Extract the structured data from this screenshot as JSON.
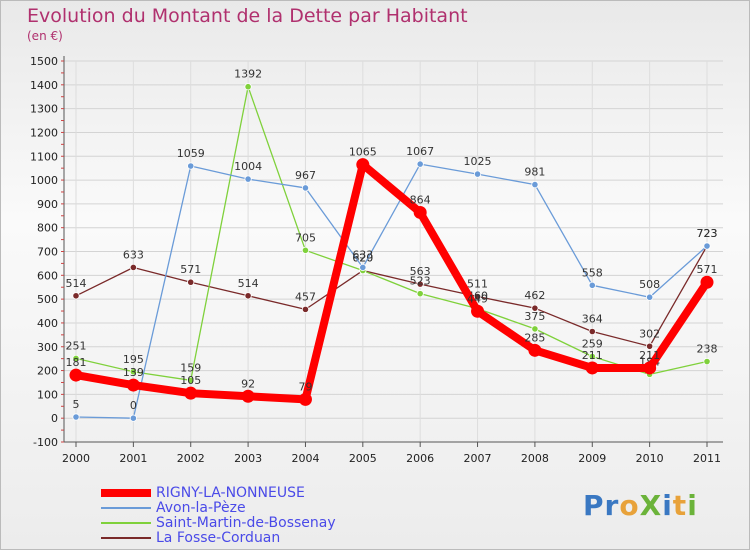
{
  "chart_data": {
    "type": "line",
    "title": "Evolution du Montant de la Dette par Habitant",
    "unit_label": "(en €)",
    "xlabel": "",
    "ylabel": "",
    "ylim": [
      -100,
      1500
    ],
    "yticks": [
      -100,
      0,
      100,
      200,
      300,
      400,
      500,
      600,
      700,
      800,
      900,
      1000,
      1100,
      1200,
      1300,
      1400,
      1500
    ],
    "categories": [
      "2000",
      "2001",
      "2002",
      "2003",
      "2004",
      "2005",
      "2006",
      "2007",
      "2008",
      "2009",
      "2010",
      "2011"
    ],
    "grid": true,
    "legend_position": "bottom-left",
    "series": [
      {
        "name": "La Fosse-Corduan",
        "color": "#7a2a2a",
        "values": [
          514,
          633,
          571,
          514,
          457,
          620,
          563,
          511,
          462,
          364,
          302,
          723
        ]
      },
      {
        "name": "Saint-Martin-de-Bossenay",
        "color": "#7fd13b",
        "values": [
          251,
          195,
          159,
          1392,
          705,
          620,
          523,
          460,
          375,
          259,
          184,
          238
        ]
      },
      {
        "name": "Avon-la-Pèze",
        "color": "#6a9bd8",
        "values": [
          5,
          0,
          1059,
          1004,
          967,
          633,
          1067,
          1025,
          981,
          558,
          508,
          723
        ]
      },
      {
        "name": "RIGNY-LA-NONNEUSE",
        "color": "#ff0000",
        "values": [
          181,
          139,
          105,
          92,
          79,
          1065,
          864,
          449,
          285,
          211,
          211,
          571
        ]
      }
    ],
    "legend": [
      "RIGNY-LA-NONNEUSE",
      "Avon-la-Pèze",
      "Saint-Martin-de-Bossenay",
      "La Fosse-Corduan"
    ]
  },
  "logo": {
    "text": "ProXiti",
    "letters": [
      {
        "ch": "P",
        "color": "#3a78c2"
      },
      {
        "ch": "r",
        "color": "#3a78c2"
      },
      {
        "ch": "o",
        "color": "#e8a23a"
      },
      {
        "ch": "X",
        "color": "#6bb33a"
      },
      {
        "ch": "i",
        "color": "#3a78c2"
      },
      {
        "ch": "t",
        "color": "#e8a23a"
      },
      {
        "ch": "i",
        "color": "#6bb33a"
      }
    ]
  }
}
